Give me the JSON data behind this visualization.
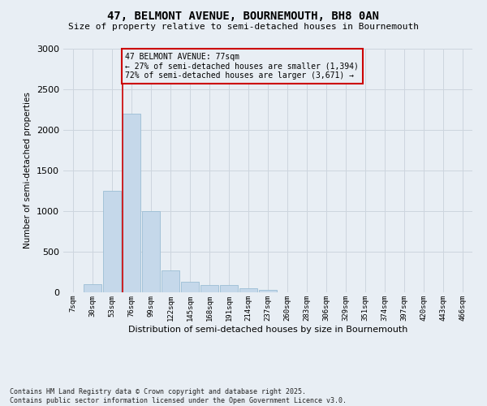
{
  "title": "47, BELMONT AVENUE, BOURNEMOUTH, BH8 0AN",
  "subtitle": "Size of property relative to semi-detached houses in Bournemouth",
  "xlabel": "Distribution of semi-detached houses by size in Bournemouth",
  "ylabel": "Number of semi-detached properties",
  "property_label": "47 BELMONT AVENUE: 77sqm",
  "pct_smaller": 27,
  "pct_larger": 72,
  "count_smaller": 1394,
  "count_larger": 3671,
  "bin_labels": [
    "7sqm",
    "30sqm",
    "53sqm",
    "76sqm",
    "99sqm",
    "122sqm",
    "145sqm",
    "168sqm",
    "191sqm",
    "214sqm",
    "237sqm",
    "260sqm",
    "283sqm",
    "306sqm",
    "329sqm",
    "351sqm",
    "374sqm",
    "397sqm",
    "420sqm",
    "443sqm",
    "466sqm"
  ],
  "bar_values": [
    5,
    100,
    1250,
    2200,
    1000,
    270,
    130,
    90,
    90,
    50,
    30,
    5,
    0,
    0,
    0,
    0,
    5,
    0,
    0,
    0,
    0
  ],
  "bar_color": "#c5d8ea",
  "bar_edge_color": "#9bbdd4",
  "grid_color": "#cdd5de",
  "background_color": "#e8eef4",
  "vline_color": "#cc0000",
  "annotation_box_color": "#cc0000",
  "ylim": [
    0,
    3000
  ],
  "yticks": [
    0,
    500,
    1000,
    1500,
    2000,
    2500,
    3000
  ],
  "footer": "Contains HM Land Registry data © Crown copyright and database right 2025.\nContains public sector information licensed under the Open Government Licence v3.0."
}
